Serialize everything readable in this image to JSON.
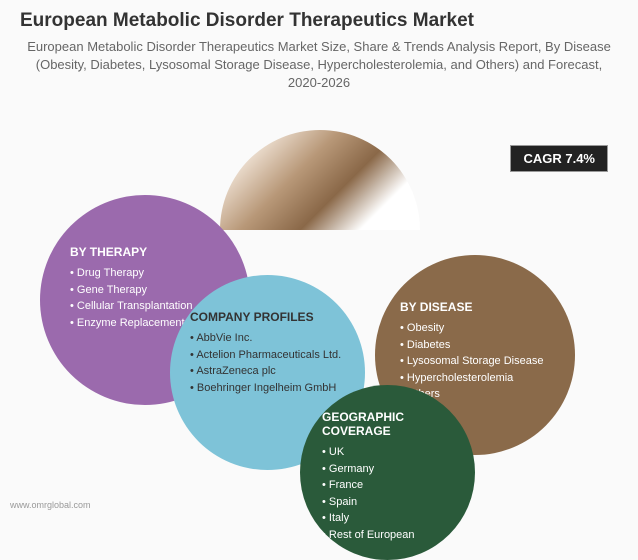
{
  "header": {
    "title": "European Metabolic Disorder Therapeutics Market",
    "subtitle": "European Metabolic Disorder Therapeutics Market Size, Share & Trends Analysis Report, By Disease (Obesity, Diabetes, Lysosomal Storage Disease, Hypercholesterolemia, and Others) and Forecast, 2020-2026"
  },
  "cagr": "CAGR 7.4%",
  "bubbles": {
    "therapy": {
      "title": "BY THERAPY",
      "color": "#9b6aad",
      "items": [
        "Drug Therapy",
        "Gene Therapy",
        "Cellular Transplantation",
        "Enzyme Replacement Therapy"
      ]
    },
    "company": {
      "title": "COMPANY PROFILES",
      "color": "#7ec3d8",
      "items": [
        "AbbVie Inc.",
        "Actelion Pharmaceuticals Ltd.",
        "AstraZeneca plc",
        "Boehringer Ingelheim GmbH"
      ]
    },
    "disease": {
      "title": "BY DISEASE",
      "color": "#8a6a4a",
      "items": [
        "Obesity",
        "Diabetes",
        "Lysosomal Storage Disease",
        "Hypercholesterolemia",
        "Others"
      ]
    },
    "geo": {
      "title": "GEOGRAPHIC COVERAGE",
      "color": "#2a5a3a",
      "items": [
        "UK",
        "Germany",
        "France",
        "Spain",
        "Italy",
        "Rest of European"
      ]
    }
  },
  "footer": "www.omrglobal.com"
}
